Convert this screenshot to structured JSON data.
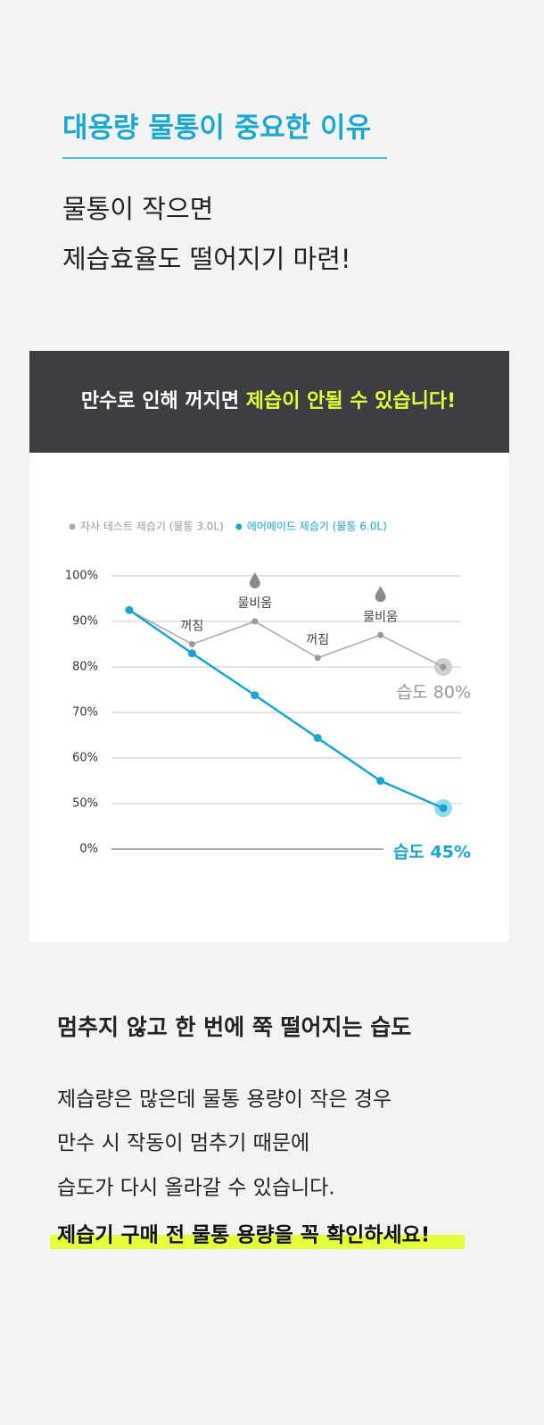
{
  "header": {
    "title": "대용량 물통이 중요한 이유",
    "lines": [
      "물통이 작으면",
      "제습효율도 떨어지기 마련!"
    ]
  },
  "banner": {
    "parts": [
      "만수로 인해 꺼지면 ",
      "제습이 안될 수 있습니다!"
    ]
  },
  "chart_data": {
    "type": "line",
    "categories": [
      null,
      null,
      null,
      null,
      null,
      null
    ],
    "series": [
      {
        "name": "자사 테스트 제습기 (물통 3.0L)",
        "color": "#aaaaaa",
        "values": [
          92.5,
          85,
          90,
          82,
          87,
          80
        ]
      },
      {
        "name": "에어메이드 제습기 (물통 6.0L)",
        "color": "#1aa6cc",
        "values": [
          92.5,
          83,
          73.8,
          64.4,
          55,
          45
        ]
      }
    ],
    "ylim": [
      0,
      100
    ],
    "yticks": [
      {
        "value": 100,
        "label": "100%"
      },
      {
        "value": 90,
        "label": "90%"
      },
      {
        "value": 80,
        "label": "80%"
      },
      {
        "value": 70,
        "label": "70%"
      },
      {
        "value": 60,
        "label": "60%"
      },
      {
        "value": 50,
        "label": "50%"
      },
      {
        "value": 0,
        "label": "0%"
      }
    ],
    "grid": true,
    "legend": "top-left",
    "annotations": [
      "꺼짐",
      "물비움",
      "꺼짐",
      "물비움"
    ],
    "end_labels": [
      "습도 80%",
      "습도 45%"
    ]
  },
  "body": {
    "heading": "멈추지 않고 한 번에 쭉 떨어지는 습도",
    "lines": [
      "제습량은 많은데 물통 용량이 작은 경우",
      "만수 시 작동이 멈추기 때문에",
      "습도가 다시 올라갈 수 있습니다."
    ],
    "highlight": "제습기 구매 전 물통 용량을 꼭 확인하세요!"
  }
}
